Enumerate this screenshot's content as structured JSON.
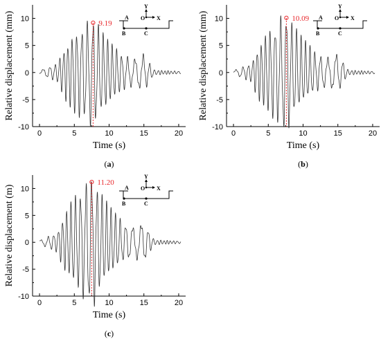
{
  "colors": {
    "trace": "#333333",
    "annotation": "#e8262a",
    "axis": "#000000"
  },
  "inset": {
    "labels": [
      "A",
      "B",
      "C",
      "O",
      "X",
      "Y"
    ]
  },
  "chart_data": [
    {
      "type": "line",
      "panel_label": "(a)",
      "xlabel": "Time (s)",
      "ylabel": "Relative displacement (mm)",
      "xlim": [
        -1,
        21
      ],
      "ylim": [
        -10,
        12.5
      ],
      "xticks": [
        0,
        5,
        10,
        15,
        20
      ],
      "yticks": [
        -10,
        -5,
        0,
        5,
        10
      ],
      "peak": {
        "x": 7.7,
        "y": 9.19,
        "label": "9.19"
      },
      "series": [
        {
          "x": [
            0,
            2.5,
            3.5,
            5,
            6,
            7.7,
            8.5,
            10,
            12,
            13.5,
            15,
            16.5,
            20.3
          ],
          "envelope": [
            0.3,
            1.5,
            4.0,
            6.8,
            7.2,
            9.19,
            7.5,
            5.2,
            2.8,
            2.2,
            3.0,
            0.4,
            0.2
          ]
        }
      ]
    },
    {
      "type": "line",
      "panel_label": "(b)",
      "xlabel": "Time (s)",
      "ylabel": "Relative displacement (mm)",
      "xlim": [
        -1,
        21
      ],
      "ylim": [
        -10,
        12.5
      ],
      "xticks": [
        0,
        5,
        10,
        15,
        20
      ],
      "yticks": [
        -10,
        -5,
        0,
        5,
        10
      ],
      "peak": {
        "x": 7.6,
        "y": 10.09,
        "label": "10.09"
      },
      "series": [
        {
          "x": [
            0,
            2.5,
            3.5,
            5,
            6,
            7.6,
            8.5,
            10,
            12,
            13.5,
            15,
            16.5,
            20.3
          ],
          "envelope": [
            0.3,
            1.5,
            4.2,
            7.0,
            7.8,
            10.09,
            7.8,
            5.5,
            3.0,
            2.4,
            3.2,
            0.4,
            0.2
          ]
        }
      ]
    },
    {
      "type": "line",
      "panel_label": "(c)",
      "xlabel": "Time (s)",
      "ylabel": "Relative displacement (m)",
      "xlim": [
        -1,
        21
      ],
      "ylim": [
        -10,
        12.5
      ],
      "xticks": [
        0,
        5,
        10,
        15,
        20
      ],
      "yticks": [
        -10,
        -5,
        0,
        5,
        10
      ],
      "peak": {
        "x": 7.5,
        "y": 11.2,
        "label": "11.20"
      },
      "series": [
        {
          "x": [
            0,
            2.5,
            3.5,
            5,
            6,
            7.5,
            8.5,
            10,
            12,
            13.5,
            15,
            16.5,
            20.3
          ],
          "envelope": [
            0.3,
            1.6,
            4.5,
            7.5,
            8.5,
            11.2,
            8.5,
            6.0,
            3.2,
            2.6,
            3.3,
            0.4,
            0.2
          ]
        }
      ]
    }
  ]
}
